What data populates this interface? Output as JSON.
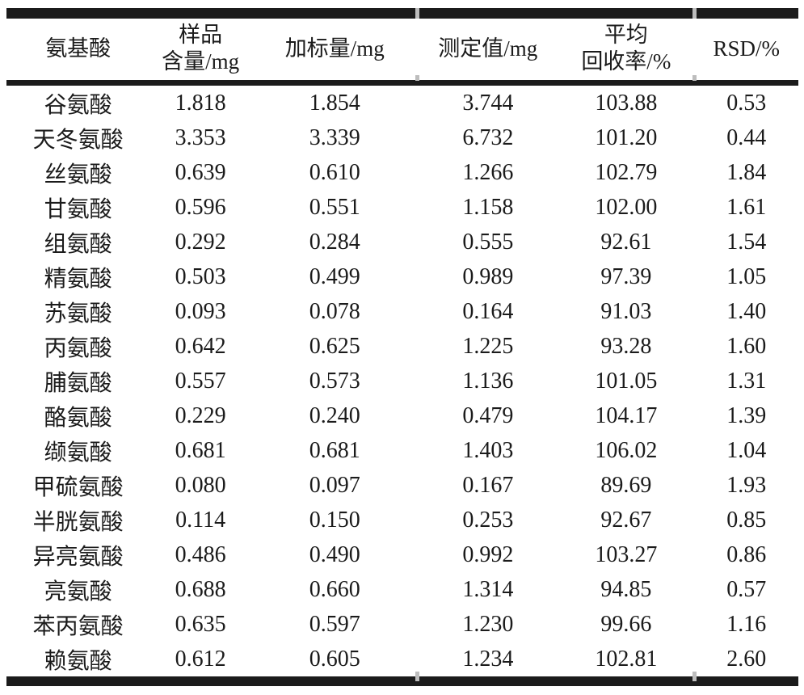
{
  "colors": {
    "text": "#1b1b1b",
    "rule": "#1b1b1b",
    "background": "#ffffff",
    "seam": "#bdbdbd"
  },
  "table": {
    "columns": [
      {
        "id": "amino-acid",
        "label_lines": [
          "氨基酸"
        ]
      },
      {
        "id": "sample-content",
        "label_lines": [
          "样品",
          "含量/mg"
        ]
      },
      {
        "id": "spiked-amount",
        "label_lines": [
          "加标量/mg"
        ]
      },
      {
        "id": "measured-value",
        "label_lines": [
          "测定值/mg"
        ]
      },
      {
        "id": "mean-recovery",
        "label_lines": [
          "平均",
          "回收率/%"
        ]
      },
      {
        "id": "rsd",
        "label_lines": [
          "RSD/%"
        ]
      }
    ],
    "rows": [
      [
        "谷氨酸",
        "1.818",
        "1.854",
        "3.744",
        "103.88",
        "0.53"
      ],
      [
        "天冬氨酸",
        "3.353",
        "3.339",
        "6.732",
        "101.20",
        "0.44"
      ],
      [
        "丝氨酸",
        "0.639",
        "0.610",
        "1.266",
        "102.79",
        "1.84"
      ],
      [
        "甘氨酸",
        "0.596",
        "0.551",
        "1.158",
        "102.00",
        "1.61"
      ],
      [
        "组氨酸",
        "0.292",
        "0.284",
        "0.555",
        "92.61",
        "1.54"
      ],
      [
        "精氨酸",
        "0.503",
        "0.499",
        "0.989",
        "97.39",
        "1.05"
      ],
      [
        "苏氨酸",
        "0.093",
        "0.078",
        "0.164",
        "91.03",
        "1.40"
      ],
      [
        "丙氨酸",
        "0.642",
        "0.625",
        "1.225",
        "93.28",
        "1.60"
      ],
      [
        "脯氨酸",
        "0.557",
        "0.573",
        "1.136",
        "101.05",
        "1.31"
      ],
      [
        "酪氨酸",
        "0.229",
        "0.240",
        "0.479",
        "104.17",
        "1.39"
      ],
      [
        "缬氨酸",
        "0.681",
        "0.681",
        "1.403",
        "106.02",
        "1.04"
      ],
      [
        "甲硫氨酸",
        "0.080",
        "0.097",
        "0.167",
        "89.69",
        "1.93"
      ],
      [
        "半胱氨酸",
        "0.114",
        "0.150",
        "0.253",
        "92.67",
        "0.85"
      ],
      [
        "异亮氨酸",
        "0.486",
        "0.490",
        "0.992",
        "103.27",
        "0.86"
      ],
      [
        "亮氨酸",
        "0.688",
        "0.660",
        "1.314",
        "94.85",
        "0.57"
      ],
      [
        "苯丙氨酸",
        "0.635",
        "0.597",
        "1.230",
        "99.66",
        "1.16"
      ],
      [
        "赖氨酸",
        "0.612",
        "0.605",
        "1.234",
        "102.81",
        "2.60"
      ]
    ]
  },
  "chart_data": {
    "type": "table",
    "title": "",
    "columns": [
      "氨基酸",
      "样品含量/mg",
      "加标量/mg",
      "测定值/mg",
      "平均回收率/%",
      "RSD/%"
    ],
    "rows": [
      [
        "谷氨酸",
        1.818,
        1.854,
        3.744,
        103.88,
        0.53
      ],
      [
        "天冬氨酸",
        3.353,
        3.339,
        6.732,
        101.2,
        0.44
      ],
      [
        "丝氨酸",
        0.639,
        0.61,
        1.266,
        102.79,
        1.84
      ],
      [
        "甘氨酸",
        0.596,
        0.551,
        1.158,
        102.0,
        1.61
      ],
      [
        "组氨酸",
        0.292,
        0.284,
        0.555,
        92.61,
        1.54
      ],
      [
        "精氨酸",
        0.503,
        0.499,
        0.989,
        97.39,
        1.05
      ],
      [
        "苏氨酸",
        0.093,
        0.078,
        0.164,
        91.03,
        1.4
      ],
      [
        "丙氨酸",
        0.642,
        0.625,
        1.225,
        93.28,
        1.6
      ],
      [
        "脯氨酸",
        0.557,
        0.573,
        1.136,
        101.05,
        1.31
      ],
      [
        "酪氨酸",
        0.229,
        0.24,
        0.479,
        104.17,
        1.39
      ],
      [
        "缬氨酸",
        0.681,
        0.681,
        1.403,
        106.02,
        1.04
      ],
      [
        "甲硫氨酸",
        0.08,
        0.097,
        0.167,
        89.69,
        1.93
      ],
      [
        "半胱氨酸",
        0.114,
        0.15,
        0.253,
        92.67,
        0.85
      ],
      [
        "异亮氨酸",
        0.486,
        0.49,
        0.992,
        103.27,
        0.86
      ],
      [
        "亮氨酸",
        0.688,
        0.66,
        1.314,
        94.85,
        0.57
      ],
      [
        "苯丙氨酸",
        0.635,
        0.597,
        1.23,
        99.66,
        1.16
      ],
      [
        "赖氨酸",
        0.612,
        0.605,
        1.234,
        102.81,
        2.6
      ]
    ]
  }
}
